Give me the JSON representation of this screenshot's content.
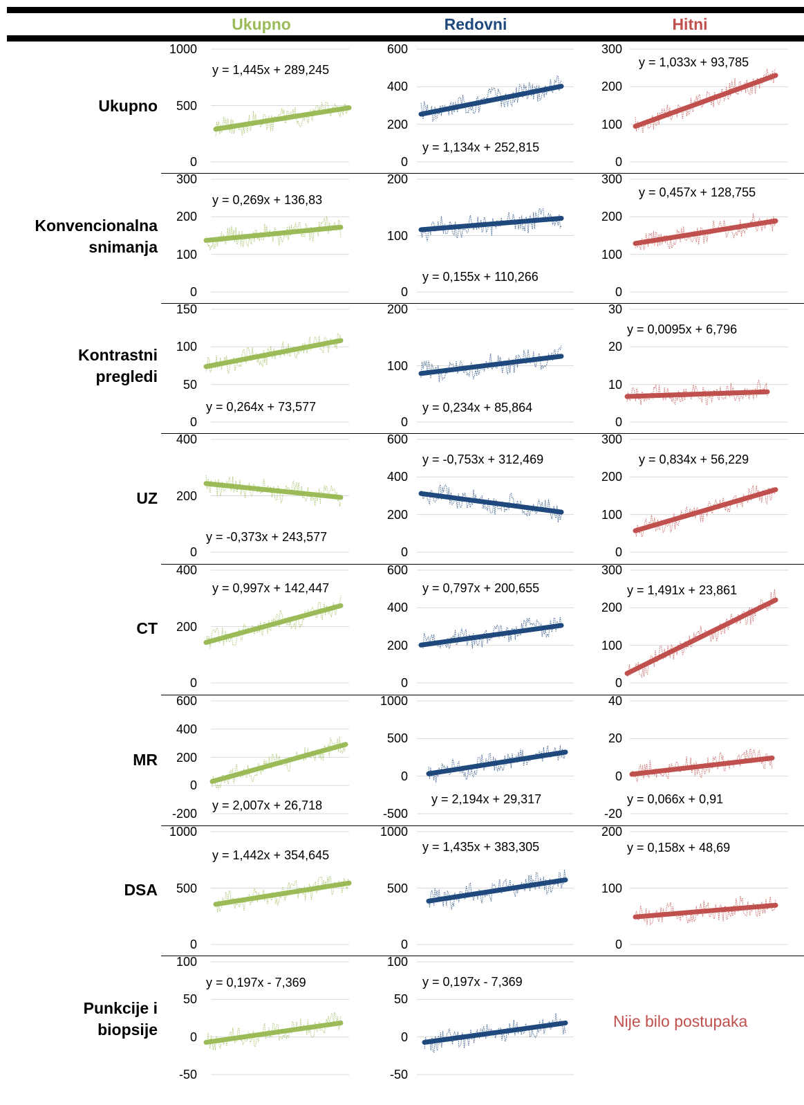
{
  "columns": [
    {
      "label": "Ukupno",
      "color": "#9bbb59"
    },
    {
      "label": "Redovni",
      "color": "#1f497d"
    },
    {
      "label": "Hitni",
      "color": "#c0504d"
    }
  ],
  "rows": [
    {
      "label_lines": [
        "Ukupno"
      ]
    },
    {
      "label_lines": [
        "Konvencionalna",
        "snimanja"
      ]
    },
    {
      "label_lines": [
        "Kontrastni",
        "pregledi"
      ]
    },
    {
      "label_lines": [
        "UZ"
      ]
    },
    {
      "label_lines": [
        "CT"
      ]
    },
    {
      "label_lines": [
        "MR"
      ]
    },
    {
      "label_lines": [
        "DSA"
      ]
    },
    {
      "label_lines": [
        "Punkcije i",
        "biopsije"
      ]
    }
  ],
  "no_procedures_text": "Nije bilo postupaka",
  "chart_data": [
    {
      "type": "line",
      "row": "Ukupno",
      "column": "Ukupno",
      "ylim": [
        0,
        1000
      ],
      "yticks": [
        "1000",
        "500",
        "0"
      ],
      "trendline": {
        "equation": "y = 1,445x + 289,245",
        "slope": 1.445,
        "intercept": 289.245
      },
      "x_range": [
        1,
        132
      ]
    },
    {
      "type": "line",
      "row": "Ukupno",
      "column": "Redovni",
      "ylim": [
        0,
        600
      ],
      "yticks": [
        "600",
        "400",
        "200",
        "0"
      ],
      "trendline": {
        "equation": "y = 1,134x + 252,815",
        "slope": 1.134,
        "intercept": 252.815
      },
      "x_range": [
        1,
        132
      ]
    },
    {
      "type": "line",
      "row": "Ukupno",
      "column": "Hitni",
      "ylim": [
        0,
        300
      ],
      "yticks": [
        "300",
        "200",
        "100",
        "0"
      ],
      "trendline": {
        "equation": "y = 1,033x + 93,785",
        "slope": 1.033,
        "intercept": 93.785
      },
      "x_range": [
        1,
        132
      ]
    },
    {
      "type": "line",
      "row": "Konvencionalna snimanja",
      "column": "Ukupno",
      "ylim": [
        0,
        300
      ],
      "yticks": [
        "300",
        "200",
        "100",
        "0"
      ],
      "trendline": {
        "equation": "y = 0,269x + 136,83",
        "slope": 0.269,
        "intercept": 136.83
      },
      "x_range": [
        1,
        132
      ]
    },
    {
      "type": "line",
      "row": "Konvencionalna snimanja",
      "column": "Redovni",
      "ylim": [
        0,
        200
      ],
      "yticks": [
        "200",
        "100",
        "0"
      ],
      "trendline": {
        "equation": "y = 0,155x + 110,266",
        "slope": 0.155,
        "intercept": 110.266
      },
      "x_range": [
        1,
        132
      ]
    },
    {
      "type": "line",
      "row": "Konvencionalna snimanja",
      "column": "Hitni",
      "ylim": [
        0,
        300
      ],
      "yticks": [
        "300",
        "200",
        "100",
        "0"
      ],
      "trendline": {
        "equation": "y = 0,457x + 128,755",
        "slope": 0.457,
        "intercept": 128.755
      },
      "x_range": [
        1,
        132
      ]
    },
    {
      "type": "line",
      "row": "Kontrastni pregledi",
      "column": "Ukupno",
      "ylim": [
        0,
        150
      ],
      "yticks": [
        "150",
        "100",
        "50",
        "0"
      ],
      "trendline": {
        "equation": "y = 0,264x + 73,577",
        "slope": 0.264,
        "intercept": 73.577
      },
      "x_range": [
        1,
        132
      ]
    },
    {
      "type": "line",
      "row": "Kontrastni pregledi",
      "column": "Redovni",
      "ylim": [
        0,
        200
      ],
      "yticks": [
        "200",
        "100",
        "0"
      ],
      "trendline": {
        "equation": "y = 0,234x + 85,864",
        "slope": 0.234,
        "intercept": 85.864
      },
      "x_range": [
        1,
        132
      ]
    },
    {
      "type": "line",
      "row": "Kontrastni pregledi",
      "column": "Hitni",
      "ylim": [
        0,
        30
      ],
      "yticks": [
        "30",
        "20",
        "10",
        "0"
      ],
      "trendline": {
        "equation": "y = 0,0095x + 6,796",
        "slope": 0.0095,
        "intercept": 6.796
      },
      "x_range": [
        1,
        132
      ]
    },
    {
      "type": "line",
      "row": "UZ",
      "column": "Ukupno",
      "ylim": [
        0,
        400
      ],
      "yticks": [
        "400",
        "200",
        "0"
      ],
      "trendline": {
        "equation": "y = -0,373x + 243,577",
        "slope": -0.373,
        "intercept": 243.577
      },
      "x_range": [
        1,
        132
      ]
    },
    {
      "type": "line",
      "row": "UZ",
      "column": "Redovni",
      "ylim": [
        0,
        600
      ],
      "yticks": [
        "600",
        "400",
        "200",
        "0"
      ],
      "trendline": {
        "equation": "y = -0,753x + 312,469",
        "slope": -0.753,
        "intercept": 312.469
      },
      "x_range": [
        1,
        132
      ]
    },
    {
      "type": "line",
      "row": "UZ",
      "column": "Hitni",
      "ylim": [
        0,
        300
      ],
      "yticks": [
        "300",
        "200",
        "100",
        "0"
      ],
      "trendline": {
        "equation": "y = 0,834x + 56,229",
        "slope": 0.834,
        "intercept": 56.229
      },
      "x_range": [
        1,
        132
      ]
    },
    {
      "type": "line",
      "row": "CT",
      "column": "Ukupno",
      "ylim": [
        0,
        400
      ],
      "yticks": [
        "400",
        "200",
        "0"
      ],
      "trendline": {
        "equation": "y = 0,997x + 142,447",
        "slope": 0.997,
        "intercept": 142.447
      },
      "x_range": [
        1,
        132
      ]
    },
    {
      "type": "line",
      "row": "CT",
      "column": "Redovni",
      "ylim": [
        0,
        600
      ],
      "yticks": [
        "600",
        "400",
        "200",
        "0"
      ],
      "trendline": {
        "equation": "y = 0,797x + 200,655",
        "slope": 0.797,
        "intercept": 200.655
      },
      "x_range": [
        1,
        132
      ]
    },
    {
      "type": "line",
      "row": "CT",
      "column": "Hitni",
      "ylim": [
        0,
        300
      ],
      "yticks": [
        "300",
        "200",
        "100",
        "0"
      ],
      "trendline": {
        "equation": "y = 1,491x + 23,861",
        "slope": 1.491,
        "intercept": 23.861
      },
      "x_range": [
        1,
        132
      ]
    },
    {
      "type": "line",
      "row": "MR",
      "column": "Ukupno",
      "ylim": [
        -200,
        600
      ],
      "yticks": [
        "600",
        "400",
        "200",
        "0",
        "-200"
      ],
      "trendline": {
        "equation": "y = 2,007x + 26,718",
        "slope": 2.007,
        "intercept": 26.718
      },
      "x_range": [
        1,
        132
      ]
    },
    {
      "type": "line",
      "row": "MR",
      "column": "Redovni",
      "ylim": [
        -500,
        1000
      ],
      "yticks": [
        "1000",
        "500",
        "0",
        "-500"
      ],
      "trendline": {
        "equation": "y = 2,194x + 29,317",
        "slope": 2.194,
        "intercept": 29.317
      },
      "x_range": [
        1,
        132
      ]
    },
    {
      "type": "line",
      "row": "MR",
      "column": "Hitni",
      "ylim": [
        -20,
        40
      ],
      "yticks": [
        "40",
        "20",
        "0",
        "-20"
      ],
      "trendline": {
        "equation": "y = 0,066x + 0,91",
        "slope": 0.066,
        "intercept": 0.91
      },
      "x_range": [
        1,
        132
      ]
    },
    {
      "type": "line",
      "row": "DSA",
      "column": "Ukupno",
      "ylim": [
        0,
        1000
      ],
      "yticks": [
        "1000",
        "500",
        "0"
      ],
      "trendline": {
        "equation": "y = 1,442x + 354,645",
        "slope": 1.442,
        "intercept": 354.645
      },
      "x_range": [
        1,
        132
      ]
    },
    {
      "type": "line",
      "row": "DSA",
      "column": "Redovni",
      "ylim": [
        0,
        1000
      ],
      "yticks": [
        "1000",
        "500",
        "0"
      ],
      "trendline": {
        "equation": "y = 1,435x + 383,305",
        "slope": 1.435,
        "intercept": 383.305
      },
      "x_range": [
        1,
        132
      ]
    },
    {
      "type": "line",
      "row": "DSA",
      "column": "Hitni",
      "ylim": [
        0,
        200
      ],
      "yticks": [
        "200",
        "100",
        "0"
      ],
      "trendline": {
        "equation": "y = 0,158x + 48,69",
        "slope": 0.158,
        "intercept": 48.69
      },
      "x_range": [
        1,
        132
      ]
    },
    {
      "type": "line",
      "row": "Punkcije i biopsije",
      "column": "Ukupno",
      "ylim": [
        -50,
        100
      ],
      "yticks": [
        "100",
        "50",
        "0",
        "-50"
      ],
      "trendline": {
        "equation": "y = 0,197x - 7,369",
        "slope": 0.197,
        "intercept": -7.369
      },
      "x_range": [
        1,
        132
      ]
    },
    {
      "type": "line",
      "row": "Punkcije i biopsije",
      "column": "Redovni",
      "ylim": [
        -50,
        100
      ],
      "yticks": [
        "100",
        "50",
        "0",
        "-50"
      ],
      "trendline": {
        "equation": "y = 0,197x - 7,369",
        "slope": 0.197,
        "intercept": -7.369
      },
      "x_range": [
        1,
        132
      ]
    }
  ]
}
